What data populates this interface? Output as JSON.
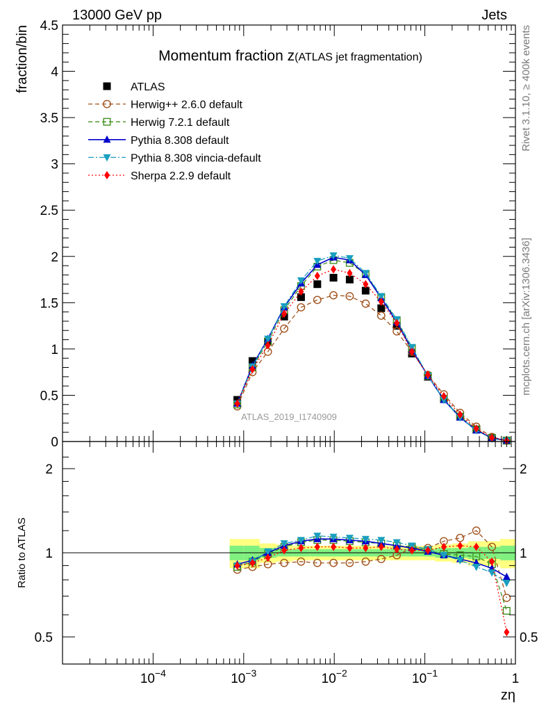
{
  "header": {
    "left": "13000 GeV pp",
    "right": "Jets"
  },
  "side_labels": {
    "rivet": "Rivet 3.1.10, ≥ 400k events",
    "mcplots": "mcplots.cern.ch [arXiv:1306.3436]"
  },
  "chart_data": {
    "type": "line",
    "title_main": "Momentum fraction z",
    "title_sub": "(ATLAS jet fragmentation)",
    "watermark": "ATLAS_2019_I1740909",
    "xlabel": "zη",
    "x_scale": "log",
    "xlim": [
      1e-05,
      1
    ],
    "x_tick_labels": [
      "10^-4",
      "10^-3",
      "10^-2",
      "10^-1",
      "1"
    ],
    "legend_position": "top-left",
    "colors": {
      "atlas": "#000000",
      "herwigpp": "#a0521d",
      "herwig7": "#3f8f1f",
      "pythia": "#0000cc",
      "vincia": "#1a9fbf",
      "sherpa": "#ff0000",
      "band_inner": "#80f080",
      "band_outer": "#ffff80"
    },
    "x": [
      0.00085,
      0.00125,
      0.00185,
      0.0028,
      0.0043,
      0.0065,
      0.0098,
      0.0148,
      0.0222,
      0.033,
      0.049,
      0.072,
      0.108,
      0.162,
      0.245,
      0.37,
      0.55,
      0.8
    ],
    "upper": {
      "ylabel": "fraction/bin",
      "ylim": [
        0,
        4.5
      ],
      "y_ticks": [
        0,
        0.5,
        1,
        1.5,
        2,
        2.5,
        3,
        3.5,
        4,
        4.5
      ],
      "y_tick_labels": [
        "0",
        "0.5",
        "1",
        "1.5",
        "2",
        "2.5",
        "3",
        "3.5",
        "4",
        "4.5"
      ],
      "series": [
        {
          "key": "atlas",
          "name": "ATLAS",
          "marker": "square-filled",
          "line": "none",
          "values": [
            0.45,
            0.87,
            1.08,
            1.35,
            1.56,
            1.7,
            1.77,
            1.75,
            1.63,
            1.44,
            1.25,
            0.95,
            0.7,
            0.46,
            0.27,
            0.13,
            0.04,
            0.01
          ]
        },
        {
          "key": "herwigpp",
          "name": "Herwig++ 2.6.0 default",
          "marker": "circle-open",
          "line": "dashed",
          "values": [
            0.38,
            0.75,
            0.97,
            1.22,
            1.45,
            1.53,
            1.58,
            1.57,
            1.49,
            1.36,
            1.19,
            0.97,
            0.72,
            0.51,
            0.31,
            0.16,
            0.05,
            0.01
          ]
        },
        {
          "key": "herwig7",
          "name": "Herwig 7.2.1 default",
          "marker": "square-open",
          "line": "dashed",
          "values": [
            0.4,
            0.8,
            1.08,
            1.42,
            1.68,
            1.89,
            1.96,
            1.93,
            1.81,
            1.56,
            1.31,
            1.01,
            0.71,
            0.46,
            0.27,
            0.13,
            0.04,
            0.01
          ]
        },
        {
          "key": "pythia",
          "name": "Pythia 8.308 default",
          "marker": "triangle-up",
          "line": "solid",
          "values": [
            0.41,
            0.82,
            1.11,
            1.45,
            1.71,
            1.91,
            1.99,
            1.96,
            1.8,
            1.55,
            1.29,
            0.99,
            0.71,
            0.45,
            0.26,
            0.12,
            0.04,
            0.01
          ]
        },
        {
          "key": "vincia",
          "name": "Pythia 8.308 vincia-default",
          "marker": "triangle-down",
          "line": "dashdot",
          "values": [
            0.41,
            0.81,
            1.11,
            1.46,
            1.74,
            1.95,
            2.01,
            1.98,
            1.82,
            1.57,
            1.32,
            1.02,
            0.71,
            0.45,
            0.26,
            0.12,
            0.03,
            0.01
          ]
        },
        {
          "key": "sherpa",
          "name": "Sherpa 2.2.9 default",
          "marker": "diamond",
          "line": "dotted",
          "values": [
            0.41,
            0.78,
            1.04,
            1.38,
            1.62,
            1.79,
            1.86,
            1.82,
            1.7,
            1.51,
            1.28,
            0.97,
            0.72,
            0.49,
            0.29,
            0.14,
            0.04,
            0.01
          ]
        }
      ]
    },
    "lower": {
      "ylabel": "Ratio to ATLAS",
      "y_scale": "log",
      "ylim": [
        0.4,
        2.5
      ],
      "y_ticks": [
        0.5,
        1,
        2
      ],
      "y_tick_labels": [
        "0.5",
        "1",
        "2"
      ],
      "band": {
        "edges": [
          0.0007,
          0.001,
          0.0015,
          0.0023,
          0.0035,
          0.0053,
          0.008,
          0.012,
          0.018,
          0.027,
          0.04,
          0.06,
          0.09,
          0.13,
          0.2,
          0.3,
          0.45,
          0.68,
          1.0
        ],
        "inner": [
          0.06,
          0.06,
          0.04,
          0.03,
          0.03,
          0.03,
          0.03,
          0.03,
          0.03,
          0.03,
          0.03,
          0.03,
          0.03,
          0.04,
          0.04,
          0.05,
          0.05,
          0.06
        ],
        "outer": [
          0.12,
          0.12,
          0.08,
          0.07,
          0.06,
          0.06,
          0.06,
          0.06,
          0.06,
          0.06,
          0.06,
          0.06,
          0.06,
          0.07,
          0.08,
          0.1,
          0.1,
          0.12
        ]
      },
      "series": [
        {
          "key": "herwigpp",
          "values": [
            0.87,
            0.89,
            0.91,
            0.92,
            0.93,
            0.92,
            0.92,
            0.92,
            0.93,
            0.95,
            0.98,
            1.04,
            1.04,
            1.1,
            1.13,
            1.2,
            1.05,
            0.69
          ]
        },
        {
          "key": "herwig7",
          "values": [
            0.89,
            0.93,
            0.99,
            1.05,
            1.09,
            1.11,
            1.11,
            1.1,
            1.09,
            1.08,
            1.06,
            1.05,
            1.02,
            0.99,
            0.98,
            0.97,
            0.91,
            0.62
          ]
        },
        {
          "key": "pythia",
          "values": [
            0.91,
            0.94,
            1.0,
            1.06,
            1.1,
            1.12,
            1.12,
            1.11,
            1.1,
            1.08,
            1.06,
            1.04,
            1.01,
            0.98,
            0.95,
            0.92,
            0.88,
            0.82
          ]
        },
        {
          "key": "vincia",
          "values": [
            0.9,
            0.93,
            1.01,
            1.08,
            1.11,
            1.15,
            1.14,
            1.13,
            1.12,
            1.11,
            1.09,
            1.06,
            1.03,
            0.98,
            0.94,
            0.89,
            0.85,
            0.78
          ]
        },
        {
          "key": "sherpa",
          "values": [
            0.9,
            0.92,
            0.96,
            1.02,
            1.04,
            1.05,
            1.05,
            1.04,
            1.04,
            1.05,
            1.03,
            1.02,
            1.02,
            1.05,
            1.06,
            1.05,
            0.93,
            0.52
          ]
        }
      ]
    }
  }
}
